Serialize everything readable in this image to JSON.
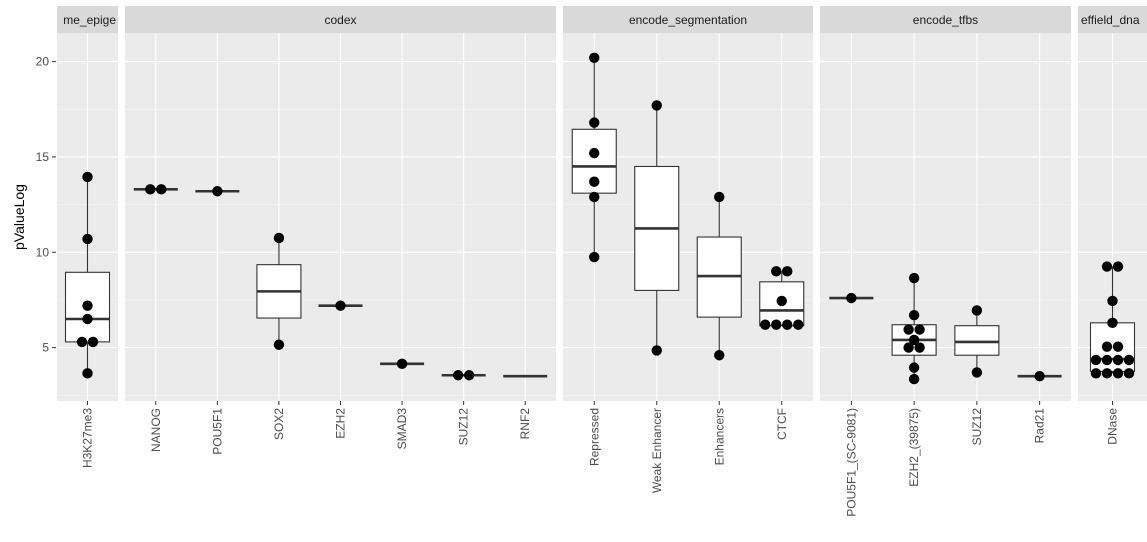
{
  "chart_data": {
    "type": "box",
    "ylabel": "pValueLog",
    "ylim": [
      2.2,
      21.5
    ],
    "yticks": [
      5,
      10,
      15,
      20
    ],
    "grid": true,
    "panels": [
      {
        "label": "me_epige",
        "categories": [
          {
            "name": "H3K27me3",
            "box": {
              "q1": 5.3,
              "median": 6.5,
              "q3": 8.95,
              "low": 3.65,
              "high": 13.95
            },
            "points": [
              13.95,
              10.7,
              7.2,
              6.5,
              5.3,
              5.3,
              3.65
            ]
          }
        ]
      },
      {
        "label": "codex",
        "categories": [
          {
            "name": "NANOG",
            "box": {
              "q1": 13.3,
              "median": 13.3,
              "q3": 13.3,
              "low": 13.3,
              "high": 13.3
            },
            "points": [
              13.3,
              13.3
            ]
          },
          {
            "name": "POU5F1",
            "box": {
              "q1": 13.2,
              "median": 13.2,
              "q3": 13.2,
              "low": 13.2,
              "high": 13.2
            },
            "points": [
              13.2
            ]
          },
          {
            "name": "SOX2",
            "box": {
              "q1": 6.55,
              "median": 7.95,
              "q3": 9.35,
              "low": 5.15,
              "high": 10.75
            },
            "points": [
              10.75,
              5.15
            ]
          },
          {
            "name": "EZH2",
            "box": {
              "q1": 7.2,
              "median": 7.2,
              "q3": 7.2,
              "low": 7.2,
              "high": 7.2
            },
            "points": [
              7.2
            ]
          },
          {
            "name": "SMAD3",
            "box": {
              "q1": 4.15,
              "median": 4.15,
              "q3": 4.15,
              "low": 4.15,
              "high": 4.15
            },
            "points": [
              4.15
            ]
          },
          {
            "name": "SUZ12",
            "box": {
              "q1": 3.55,
              "median": 3.55,
              "q3": 3.55,
              "low": 3.55,
              "high": 3.55
            },
            "points": [
              3.55,
              3.55
            ]
          },
          {
            "name": "RNF2",
            "box": {
              "q1": 3.5,
              "median": 3.5,
              "q3": 3.5,
              "low": 3.5,
              "high": 3.5
            },
            "points": []
          }
        ]
      },
      {
        "label": "encode_segmentation",
        "categories": [
          {
            "name": "Repressed",
            "box": {
              "q1": 13.1,
              "median": 14.5,
              "q3": 16.45,
              "low": 9.75,
              "high": 20.2
            },
            "points": [
              20.2,
              16.8,
              15.2,
              13.7,
              12.9,
              9.75
            ]
          },
          {
            "name": "Weak Enhancer",
            "box": {
              "q1": 8.0,
              "median": 11.25,
              "q3": 14.5,
              "low": 4.85,
              "high": 17.7
            },
            "points": [
              17.7,
              4.85
            ]
          },
          {
            "name": "Enhancers",
            "box": {
              "q1": 6.6,
              "median": 8.75,
              "q3": 10.8,
              "low": 4.6,
              "high": 12.9
            },
            "points": [
              12.9,
              4.6
            ]
          },
          {
            "name": "CTCF",
            "box": {
              "q1": 6.15,
              "median": 6.95,
              "q3": 8.45,
              "low": 6.15,
              "high": 9.0
            },
            "points": [
              9.0,
              9.0,
              7.45,
              6.2,
              6.2,
              6.2,
              6.2
            ]
          }
        ]
      },
      {
        "label": "encode_tfbs",
        "categories": [
          {
            "name": "POU5F1_(SC-9081)",
            "box": {
              "q1": 7.6,
              "median": 7.6,
              "q3": 7.6,
              "low": 7.6,
              "high": 7.6
            },
            "points": [
              7.6
            ]
          },
          {
            "name": "EZH2_(39875)",
            "box": {
              "q1": 4.6,
              "median": 5.4,
              "q3": 6.2,
              "low": 3.35,
              "high": 8.65
            },
            "points": [
              8.65,
              6.7,
              5.95,
              5.95,
              5.4,
              5.0,
              5.0,
              3.95,
              3.35
            ]
          },
          {
            "name": "SUZ12",
            "box": {
              "q1": 4.6,
              "median": 5.3,
              "q3": 6.15,
              "low": 3.7,
              "high": 6.95
            },
            "points": [
              6.95,
              3.7
            ]
          },
          {
            "name": "Rad21",
            "box": {
              "q1": 3.5,
              "median": 3.5,
              "q3": 3.5,
              "low": 3.5,
              "high": 3.5
            },
            "points": [
              3.5
            ]
          }
        ]
      },
      {
        "label": "effield_dna",
        "categories": [
          {
            "name": "DNase",
            "box": {
              "q1": 3.75,
              "median": 4.4,
              "q3": 6.3,
              "low": 3.65,
              "high": 9.25
            },
            "points": [
              9.25,
              9.25,
              7.45,
              6.3,
              5.05,
              5.05,
              4.35,
              4.35,
              4.35,
              4.35,
              3.65,
              3.65,
              3.65,
              3.65
            ]
          }
        ]
      }
    ]
  }
}
